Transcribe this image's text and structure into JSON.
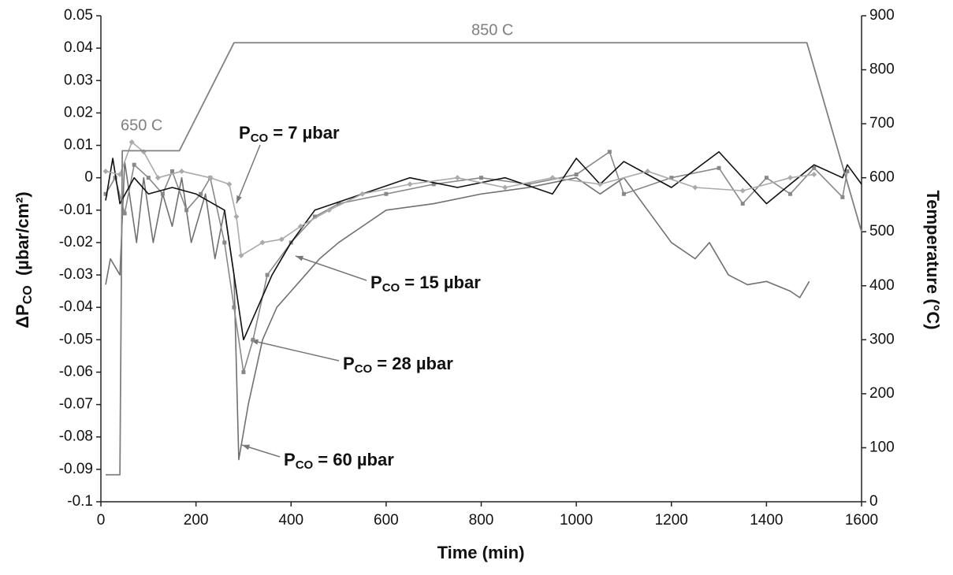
{
  "chart_data": {
    "type": "line",
    "xlabel": "Time (min)",
    "ylabel": {
      "main": "ΔP",
      "sub": "CO",
      "rest": "  (µbar/cm²)"
    },
    "y2label": "Temperature (°C)",
    "xlim": [
      0,
      1600
    ],
    "xticks": [
      0,
      200,
      400,
      600,
      800,
      1000,
      1200,
      1400,
      1600
    ],
    "ylim": [
      -0.1,
      0.05
    ],
    "yticks": [
      -0.1,
      -0.09,
      -0.08,
      -0.07,
      -0.06,
      -0.05,
      -0.04,
      -0.03,
      -0.02,
      -0.01,
      0,
      0.01,
      0.02,
      0.03,
      0.04,
      0.05
    ],
    "y2lim": [
      0,
      900
    ],
    "y2ticks": [
      0,
      100,
      200,
      300,
      400,
      500,
      600,
      700,
      800,
      900
    ],
    "annotations": [
      {
        "text": "650 C"
      },
      {
        "text": "850 C"
      },
      {
        "main": "P",
        "sub": "CO",
        "rest": " = 7 µbar"
      },
      {
        "main": "P",
        "sub": "CO",
        "rest": " = 15 µbar"
      },
      {
        "main": "P",
        "sub": "CO",
        "rest": " = 28 µbar"
      },
      {
        "main": "P",
        "sub": "CO",
        "rest": " = 60 µbar"
      }
    ],
    "series": [
      {
        "color": "#707070",
        "marker": "none",
        "x": [
          10,
          20,
          40,
          50,
          75,
          90,
          110,
          130,
          150,
          170,
          190,
          220,
          240,
          260,
          280,
          290,
          310,
          340,
          370,
          400,
          430,
          460,
          500,
          550,
          600,
          700,
          800,
          900,
          1000,
          1050,
          1100,
          1150,
          1200,
          1250,
          1280,
          1320,
          1360,
          1400,
          1450,
          1470,
          1490
        ],
        "values": [
          -0.033,
          -0.025,
          -0.03,
          0.005,
          -0.02,
          0,
          -0.02,
          -0.005,
          -0.015,
          0,
          -0.02,
          -0.005,
          -0.025,
          -0.01,
          -0.03,
          -0.087,
          -0.07,
          -0.05,
          -0.04,
          -0.035,
          -0.03,
          -0.025,
          -0.02,
          -0.015,
          -0.01,
          -0.008,
          -0.005,
          -0.003,
          0,
          -0.005,
          0,
          -0.01,
          -0.02,
          -0.025,
          -0.02,
          -0.03,
          -0.033,
          -0.032,
          -0.035,
          -0.037,
          -0.032
        ]
      },
      {
        "color": "#888888",
        "marker": "square",
        "x": [
          10,
          30,
          50,
          70,
          100,
          130,
          150,
          180,
          210,
          230,
          260,
          280,
          300,
          320,
          350,
          400,
          450,
          500,
          600,
          700,
          800,
          900,
          1000,
          1070,
          1100,
          1200,
          1300,
          1350,
          1400,
          1450,
          1500,
          1560,
          1570
        ],
        "values": [
          -0.005,
          0,
          -0.011,
          0.004,
          0,
          -0.005,
          0.002,
          -0.01,
          -0.005,
          0,
          -0.02,
          -0.04,
          -0.06,
          -0.05,
          -0.03,
          -0.02,
          -0.012,
          -0.008,
          -0.005,
          -0.002,
          0,
          -0.002,
          0.001,
          0.008,
          -0.005,
          0,
          0.003,
          -0.008,
          0,
          -0.005,
          0.003,
          -0.006,
          0.002
        ]
      },
      {
        "color": "#111111",
        "marker": "none",
        "x": [
          10,
          25,
          40,
          70,
          100,
          150,
          200,
          260,
          290,
          300,
          330,
          360,
          400,
          450,
          550,
          650,
          750,
          850,
          950,
          1000,
          1050,
          1100,
          1200,
          1300,
          1400,
          1500,
          1560,
          1570,
          1600
        ],
        "values": [
          -0.007,
          0.006,
          -0.008,
          0,
          -0.005,
          -0.003,
          -0.005,
          -0.01,
          -0.04,
          -0.05,
          -0.04,
          -0.03,
          -0.02,
          -0.01,
          -0.005,
          0,
          -0.003,
          0,
          -0.005,
          0.006,
          -0.002,
          0.005,
          -0.003,
          0.008,
          -0.008,
          0.004,
          0,
          0.004,
          -0.002
        ]
      },
      {
        "color": "#aaaaaa",
        "marker": "diamond",
        "x": [
          10,
          40,
          65,
          90,
          120,
          170,
          230,
          270,
          285,
          295,
          340,
          380,
          420,
          480,
          550,
          650,
          750,
          850,
          950,
          1050,
          1150,
          1250,
          1350,
          1450,
          1500
        ],
        "values": [
          0.002,
          0.001,
          0.011,
          0.008,
          0,
          0.002,
          0,
          -0.002,
          -0.012,
          -0.024,
          -0.02,
          -0.019,
          -0.015,
          -0.01,
          -0.005,
          -0.002,
          0,
          -0.003,
          0,
          -0.002,
          0.002,
          -0.003,
          -0.004,
          0,
          0.001
        ]
      },
      {
        "color": "#808080",
        "marker": "none",
        "axis": "y2",
        "x": [
          10,
          40,
          45,
          165,
          280,
          1485,
          1600
        ],
        "values": [
          50,
          50,
          650,
          650,
          850,
          850,
          500
        ]
      }
    ]
  }
}
